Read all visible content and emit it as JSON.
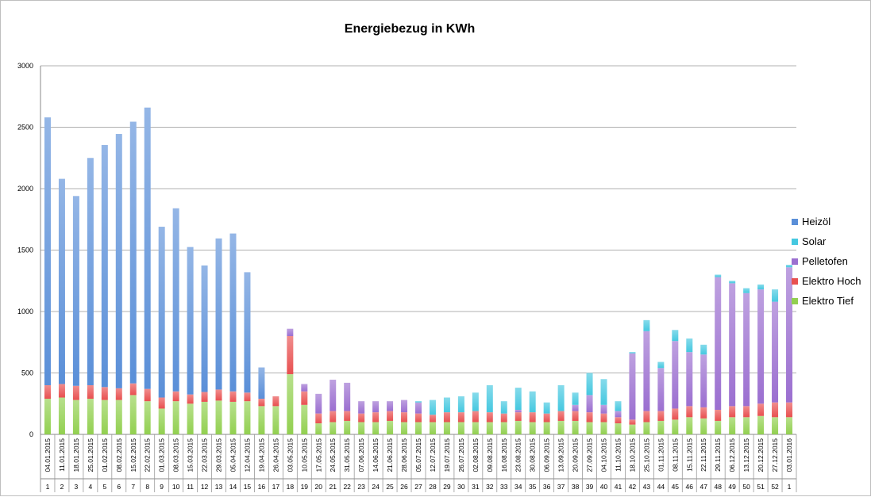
{
  "chart_data": {
    "type": "bar",
    "stacked": true,
    "title": "Energiebezug in KWh",
    "xlabel": "",
    "ylabel": "",
    "ylim": [
      0,
      3000
    ],
    "yticks": [
      0,
      500,
      1000,
      1500,
      2000,
      2500,
      3000
    ],
    "grid": true,
    "legend_position": "right",
    "dates": [
      "04.01.2015",
      "11.01.2015",
      "18.01.2015",
      "25.01.2015",
      "01.02.2015",
      "08.02.2015",
      "15.02.2015",
      "22.02.2015",
      "01.03.2015",
      "08.03.2015",
      "15.03.2015",
      "22.03.2015",
      "29.03.2015",
      "05.04.2015",
      "12.04.2015",
      "19.04.2015",
      "26.04.2015",
      "03.05.2015",
      "10.05.2015",
      "17.05.2015",
      "24.05.2015",
      "31.05.2015",
      "07.06.2015",
      "14.06.2015",
      "21.06.2015",
      "28.06.2015",
      "05.07.2015",
      "12.07.2015",
      "19.07.2015",
      "26.07.2015",
      "02.08.2015",
      "09.08.2015",
      "16.08.2015",
      "23.08.2015",
      "30.08.2015",
      "06.09.2015",
      "13.09.2015",
      "20.09.2015",
      "27.09.2015",
      "04.10.2015",
      "11.10.2015",
      "18.10.2015",
      "25.10.2015",
      "01.11.2015",
      "08.11.2015",
      "15.11.2015",
      "22.11.2015",
      "29.11.2015",
      "06.12.2015",
      "13.12.2015",
      "20.12.2015",
      "27.12.2015",
      "03.01.2016"
    ],
    "weeks": [
      "1",
      "2",
      "3",
      "4",
      "5",
      "6",
      "7",
      "8",
      "9",
      "10",
      "11",
      "12",
      "13",
      "14",
      "15",
      "16",
      "17",
      "18",
      "19",
      "20",
      "21",
      "22",
      "23",
      "24",
      "25",
      "26",
      "27",
      "28",
      "29",
      "30",
      "31",
      "32",
      "33",
      "34",
      "35",
      "36",
      "37",
      "38",
      "39",
      "40",
      "41",
      "42",
      "43",
      "44",
      "45",
      "46",
      "47",
      "48",
      "49",
      "50",
      "51",
      "52",
      "1"
    ],
    "series": [
      {
        "name": "Elektro Tief",
        "color": "#92d050",
        "values": [
          290,
          300,
          280,
          290,
          280,
          280,
          320,
          270,
          210,
          270,
          250,
          265,
          275,
          265,
          270,
          230,
          230,
          490,
          240,
          90,
          100,
          110,
          100,
          100,
          110,
          100,
          100,
          100,
          100,
          100,
          100,
          100,
          100,
          110,
          100,
          100,
          110,
          110,
          100,
          100,
          90,
          80,
          100,
          110,
          120,
          140,
          130,
          110,
          140,
          140,
          150,
          140,
          140
        ]
      },
      {
        "name": "Elektro Hoch",
        "color": "#e85050",
        "values": [
          110,
          110,
          115,
          110,
          105,
          95,
          95,
          100,
          90,
          80,
          75,
          80,
          90,
          85,
          70,
          60,
          80,
          310,
          110,
          80,
          90,
          80,
          70,
          80,
          80,
          80,
          70,
          60,
          80,
          80,
          90,
          80,
          70,
          70,
          80,
          70,
          80,
          80,
          80,
          70,
          50,
          40,
          90,
          80,
          90,
          90,
          90,
          90,
          90,
          90,
          100,
          120,
          120
        ]
      },
      {
        "name": "Pelletofen",
        "color": "#9b6fd0",
        "values": [
          0,
          0,
          0,
          0,
          0,
          0,
          0,
          0,
          0,
          0,
          0,
          0,
          0,
          0,
          0,
          0,
          0,
          60,
          60,
          160,
          255,
          230,
          100,
          90,
          80,
          100,
          90,
          0,
          0,
          0,
          0,
          0,
          0,
          20,
          0,
          0,
          0,
          50,
          140,
          70,
          50,
          540,
          650,
          350,
          550,
          440,
          430,
          1080,
          1000,
          920,
          930,
          820,
          1100
        ]
      },
      {
        "name": "Solar",
        "color": "#45c8e0",
        "values": [
          0,
          0,
          0,
          0,
          0,
          0,
          0,
          0,
          0,
          0,
          0,
          0,
          0,
          0,
          0,
          0,
          0,
          0,
          0,
          0,
          0,
          0,
          0,
          0,
          0,
          0,
          10,
          120,
          120,
          130,
          150,
          220,
          100,
          180,
          170,
          90,
          210,
          100,
          180,
          210,
          80,
          10,
          90,
          50,
          90,
          110,
          80,
          20,
          20,
          40,
          40,
          100,
          20
        ]
      },
      {
        "name": "Heizöl",
        "color": "#5a8fd8",
        "values": [
          2180,
          1670,
          1545,
          1850,
          1970,
          2070,
          2130,
          2290,
          1390,
          1490,
          1200,
          1030,
          1230,
          1285,
          980,
          255,
          0,
          0,
          0,
          0,
          0,
          0,
          0,
          0,
          0,
          0,
          0,
          0,
          0,
          0,
          0,
          0,
          0,
          0,
          0,
          0,
          0,
          0,
          0,
          0,
          0,
          0,
          0,
          0,
          0,
          0,
          0,
          0,
          0,
          0,
          0,
          0,
          0
        ]
      }
    ]
  },
  "legend": {
    "items": [
      {
        "label": "Heizöl",
        "color": "#5a8fd8"
      },
      {
        "label": "Solar",
        "color": "#45c8e0"
      },
      {
        "label": "Pelletofen",
        "color": "#9b6fd0"
      },
      {
        "label": "Elektro Hoch",
        "color": "#e85050"
      },
      {
        "label": "Elektro Tief",
        "color": "#92d050"
      }
    ]
  }
}
